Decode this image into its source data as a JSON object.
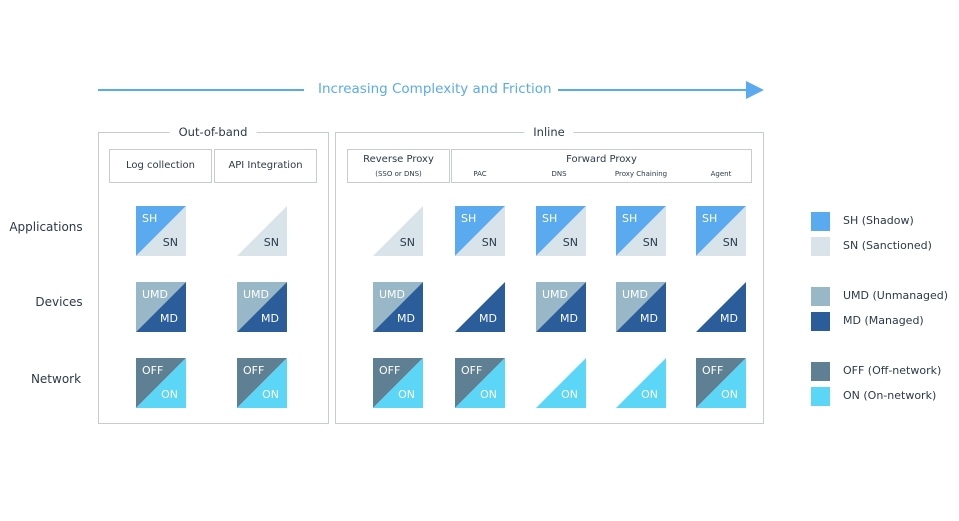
{
  "arrow_label": "Increasing Complexity and Friction",
  "groups": {
    "out_of_band": "Out-of-band",
    "inline": "Inline"
  },
  "headers": {
    "log_collection": "Log collection",
    "api_integration": "API Integration",
    "reverse_proxy": "Reverse Proxy",
    "reverse_proxy_sub": "(SSO or DNS)",
    "forward_proxy": "Forward Proxy",
    "pac": "PAC",
    "dns": "DNS",
    "proxy_chaining": "Proxy Chaining",
    "agent": "Agent"
  },
  "rows": {
    "applications": "Applications",
    "devices": "Devices",
    "network": "Network"
  },
  "tri_labels": {
    "sh": "SH",
    "sn": "SN",
    "umd": "UMD",
    "md": "MD",
    "off": "OFF",
    "on": "ON"
  },
  "colors": {
    "sh": "#5aaaf0",
    "sn": "#d8e3ea",
    "umd": "#98b8c8",
    "md": "#2a5d99",
    "off": "#5f7f93",
    "on": "#5cd6f7",
    "arrow": "#5aaaf0"
  },
  "legend": {
    "sh": "SH (Shadow)",
    "sn": "SN (Sanctioned)",
    "umd": "UMD (Unmanaged)",
    "md": "MD (Managed)",
    "off": "OFF (Off-network)",
    "on": "ON (On-network)"
  }
}
